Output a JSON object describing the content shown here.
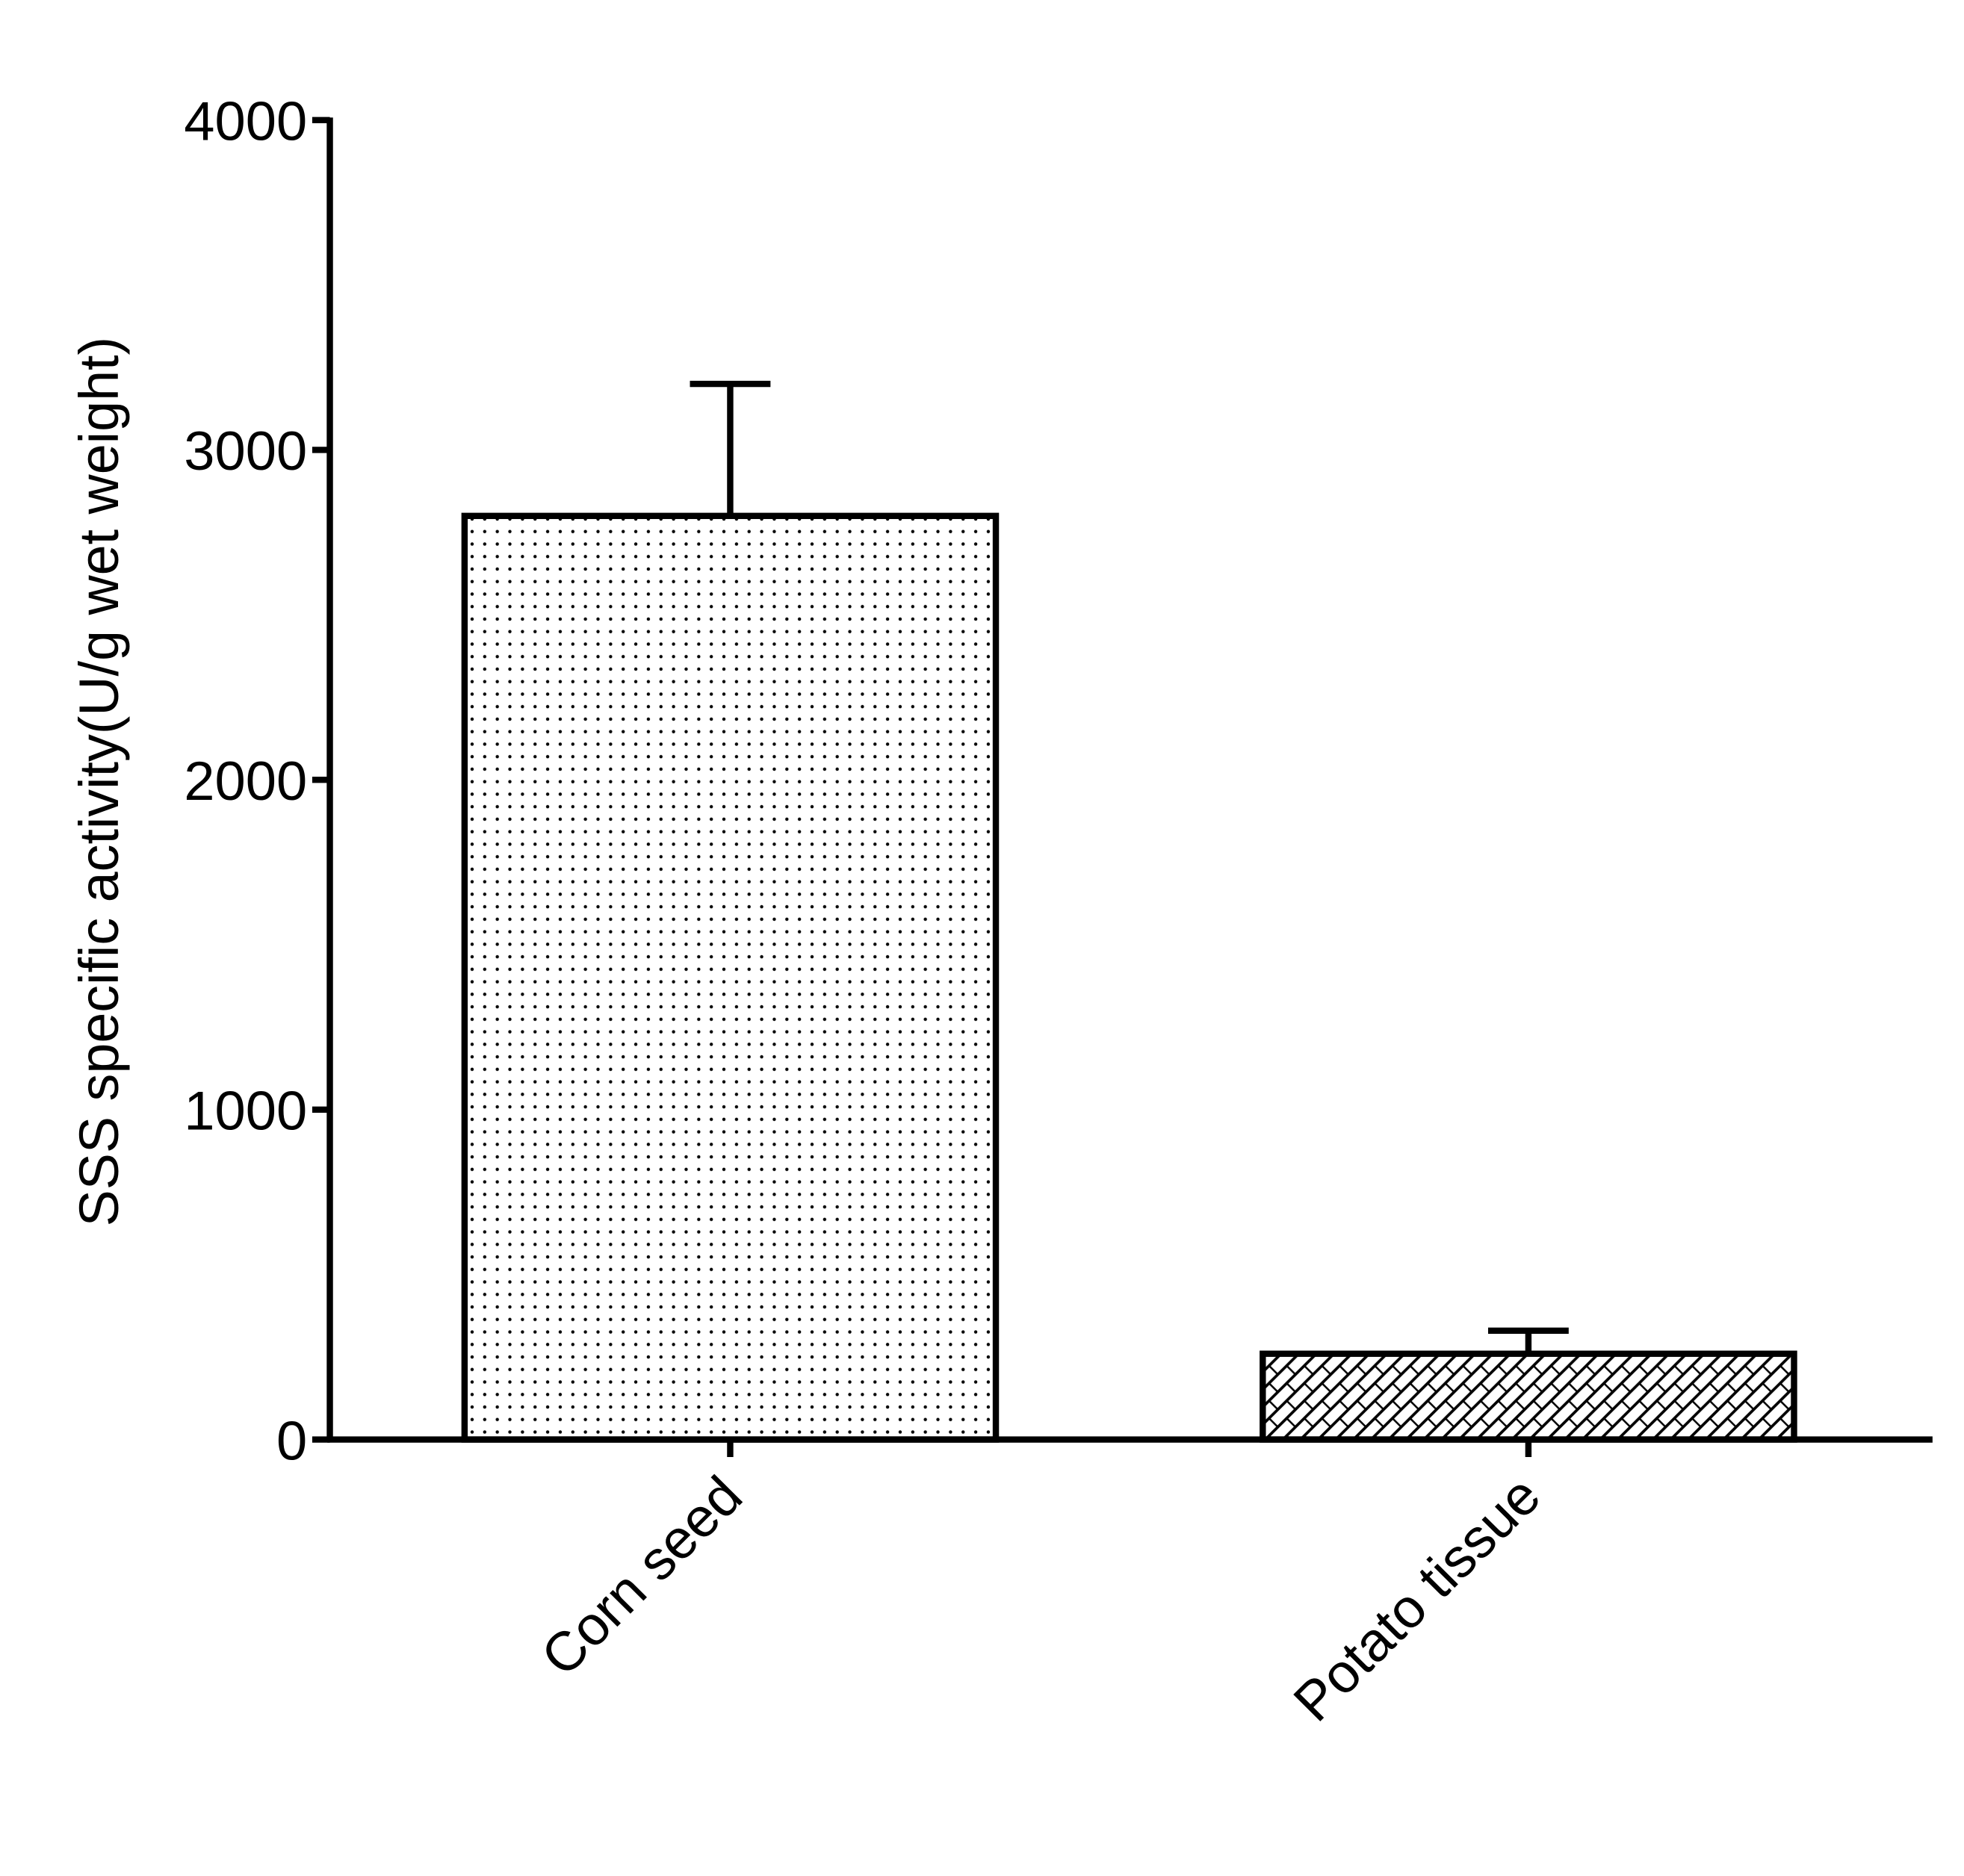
{
  "chart_data": {
    "type": "bar",
    "y_label": "SSS specific activity(U/g wet weight)",
    "categories": [
      "Corn seed",
      "Potato tissue"
    ],
    "values": [
      2800,
      260
    ],
    "errors": [
      400,
      70
    ],
    "patterns": [
      "dots",
      "crosshatch"
    ],
    "color": "#000000",
    "ylim": [
      0,
      4000
    ],
    "yticks": [
      0,
      1000,
      2000,
      3000,
      4000
    ]
  }
}
